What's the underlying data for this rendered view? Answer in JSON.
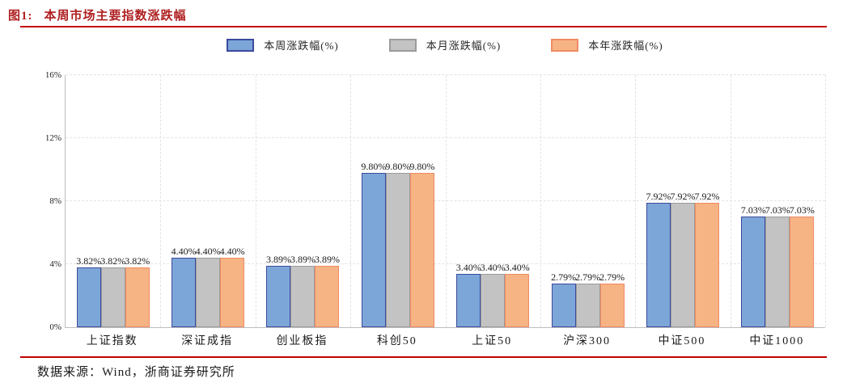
{
  "figure": {
    "label": "图1:",
    "title": "本周市场主要指数涨跌幅"
  },
  "colors": {
    "title_red": "#AF2021",
    "rule_red": "#C00000",
    "axis_gray": "#BDBDBD",
    "grid_gray": "#E3E3E3"
  },
  "legend": [
    {
      "label": "本周涨跌幅(%)",
      "fill": "#7DA6D8",
      "border": "#3C4A9E"
    },
    {
      "label": "本月涨跌幅(%)",
      "fill": "#C3C3C3",
      "border": "#9B9B9B"
    },
    {
      "label": "本年涨跌幅(%)",
      "fill": "#F6B383",
      "border": "#F08B64"
    }
  ],
  "chart_data": {
    "type": "bar",
    "title": "本周市场主要指数涨跌幅",
    "categories": [
      "上证指数",
      "深证成指",
      "创业板指",
      "科创50",
      "上证50",
      "沪深300",
      "中证500",
      "中证1000"
    ],
    "series": [
      {
        "name": "本周涨跌幅(%)",
        "fill": "#7DA6D8",
        "border": "#3C4A9E",
        "values": [
          3.82,
          4.4,
          3.89,
          9.8,
          3.4,
          2.79,
          7.92,
          7.03
        ]
      },
      {
        "name": "本月涨跌幅(%)",
        "fill": "#C3C3C3",
        "border": "#9B9B9B",
        "values": [
          3.82,
          4.4,
          3.89,
          9.8,
          3.4,
          2.79,
          7.92,
          7.03
        ]
      },
      {
        "name": "本年涨跌幅(%)",
        "fill": "#F6B383",
        "border": "#F08B64",
        "values": [
          3.82,
          4.4,
          3.89,
          9.8,
          3.4,
          2.79,
          7.92,
          7.03
        ]
      }
    ],
    "value_labels": [
      [
        "3.82%",
        "4.40%",
        "3.89%",
        "9.80%",
        "3.40%",
        "2.79%",
        "7.92%",
        "7.03%"
      ],
      [
        "3.82%",
        "4.40%",
        "3.89%",
        "9.80%",
        "3.40%",
        "2.79%",
        "7.92%",
        "7.03%"
      ],
      [
        "3.82%",
        "4.40%",
        "3.89%",
        "9.80%",
        "3.40%",
        "2.79%",
        "7.92%",
        "7.03%"
      ]
    ],
    "xlabel": "",
    "ylabel": "",
    "ylim": [
      0,
      16
    ],
    "yticks": [
      {
        "value": 0,
        "label": "0%"
      },
      {
        "value": 4,
        "label": "4%"
      },
      {
        "value": 8,
        "label": "8%"
      },
      {
        "value": 12,
        "label": "12%"
      },
      {
        "value": 16,
        "label": "16%"
      }
    ],
    "grid": "dashed",
    "legend_position": "top-center"
  },
  "footer": {
    "source": "数据来源：Wind，浙商证券研究所"
  }
}
